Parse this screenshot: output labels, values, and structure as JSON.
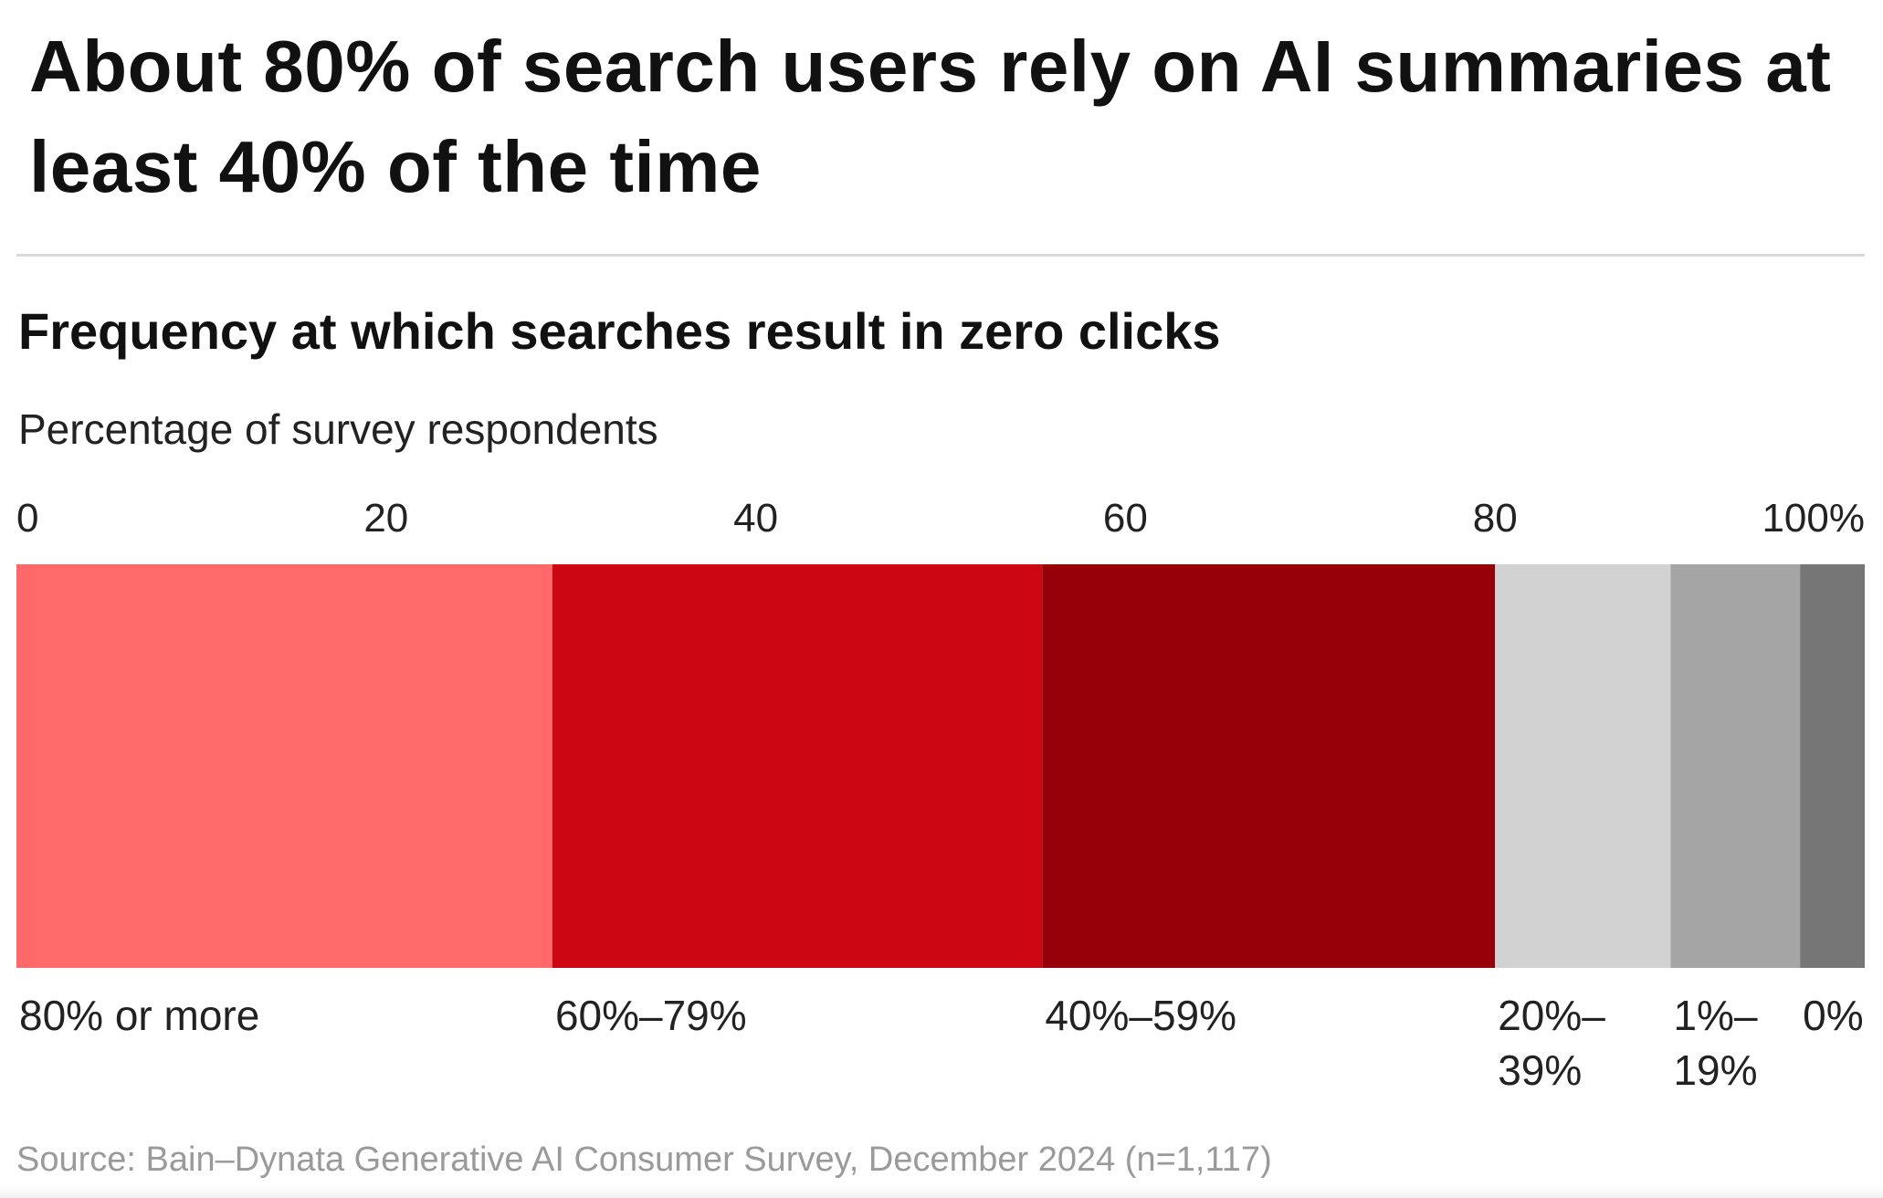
{
  "headline": "About 80% of search users rely on AI summaries at least 40% of the time",
  "chart_data": {
    "type": "bar",
    "orientation": "horizontal-stacked",
    "title": "Frequency at which searches result in zero clicks",
    "subtitle": "Percentage of survey respondents",
    "xlim": [
      0,
      100
    ],
    "axis_position": "top",
    "grid": false,
    "x_ticks": [
      {
        "value": 0,
        "label": "0"
      },
      {
        "value": 20,
        "label": "20"
      },
      {
        "value": 40,
        "label": "40"
      },
      {
        "value": 60,
        "label": "60"
      },
      {
        "value": 80,
        "label": "80"
      },
      {
        "value": 100,
        "label": "100%"
      }
    ],
    "series": [
      {
        "name": "80% or more",
        "label_lines": [
          "80% or more"
        ],
        "value": 29,
        "color": "#FF6969"
      },
      {
        "name": "60%–79%",
        "label_lines": [
          "60%–79%"
        ],
        "value": 26.5,
        "color": "#CC0711"
      },
      {
        "name": "40%–59%",
        "label_lines": [
          "40%–59%"
        ],
        "value": 24.5,
        "color": "#980009"
      },
      {
        "name": "20%–39%",
        "label_lines": [
          "20%–",
          "39%"
        ],
        "value": 9.5,
        "color": "#D2D2D2"
      },
      {
        "name": "1%–19%",
        "label_lines": [
          "1%–",
          "19%"
        ],
        "value": 7,
        "color": "#A5A5A5"
      },
      {
        "name": "0%",
        "label_lines": [
          "0%"
        ],
        "value": 3.5,
        "color": "#767676"
      }
    ]
  },
  "source": "Source: Bain–Dynata Generative AI Consumer Survey, December 2024 (n=1,117)"
}
